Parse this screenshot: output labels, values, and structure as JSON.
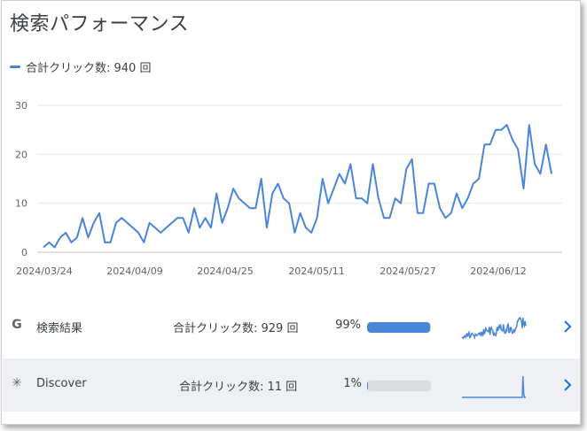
{
  "title": "検索パフォーマンス",
  "legend": {
    "label": "合計クリック数: 940 回",
    "color": "#4a86d8"
  },
  "chart_data": {
    "type": "line",
    "title": "",
    "xlabel": "",
    "ylabel": "",
    "ylim": [
      0,
      30
    ],
    "yticks": [
      "0",
      "10",
      "20",
      "30"
    ],
    "grid": true,
    "x_tick_labels": [
      "2024/03/24",
      "2024/04/09",
      "2024/04/25",
      "2024/05/11",
      "2024/05/27",
      "2024/06/12"
    ],
    "series": [
      {
        "name": "",
        "color": "#4a86d8",
        "values": [
          1,
          2,
          1,
          3,
          4,
          2,
          3,
          7,
          3,
          6,
          8,
          2,
          2,
          6,
          7,
          6,
          5,
          4,
          2,
          6,
          5,
          4,
          5,
          6,
          7,
          7,
          4,
          9,
          5,
          7,
          5,
          12,
          6,
          9,
          13,
          11,
          10,
          9,
          9,
          15,
          5,
          12,
          14,
          11,
          10,
          4,
          8,
          5,
          4,
          7,
          15,
          10,
          13,
          16,
          14,
          18,
          11,
          11,
          10,
          18,
          11,
          7,
          7,
          11,
          10,
          17,
          19,
          8,
          8,
          14,
          14,
          9,
          7,
          8,
          12,
          9,
          11,
          14,
          15,
          22,
          22,
          25,
          25,
          26,
          23,
          21,
          13,
          26,
          18,
          16,
          22,
          16
        ]
      }
    ]
  },
  "rows": [
    {
      "icon": "google-g-icon",
      "glyph": "G",
      "label": "検索結果",
      "clicks": "合計クリック数: 929 回",
      "pct": "99%",
      "fraction": 0.99,
      "bar_color": "#4a86d8",
      "selected": false
    },
    {
      "icon": "asterisk-icon",
      "glyph": "✳",
      "label": "Discover",
      "clicks": "合計クリック数: 11 回",
      "pct": "1%",
      "fraction": 0.01,
      "bar_color": "#4a86d8",
      "selected": true
    }
  ],
  "chevron_color": "#1a73e8"
}
